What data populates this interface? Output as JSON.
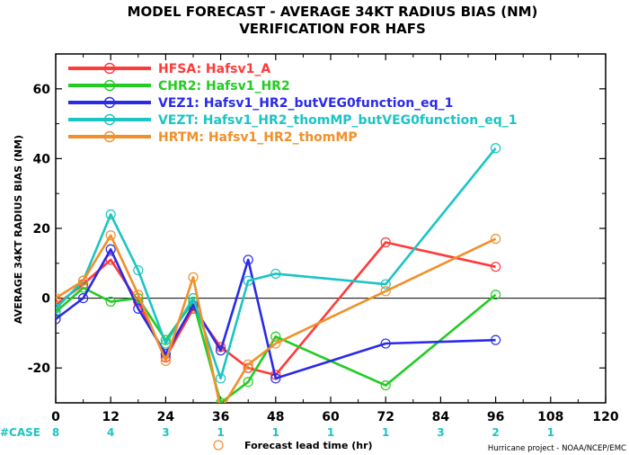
{
  "chart_data": {
    "type": "line",
    "title": "MODEL FORECAST - AVERAGE 34KT RADIUS BIAS (NM)",
    "subtitle": "VERIFICATION FOR HAFS",
    "ylabel": "AVERAGE 34KT RADIUS BIAS (NM)",
    "xlabel": "Forecast lead time (hr)",
    "credit": "Hurricane project - NOAA/NCEP/EMC",
    "case_label": "#CASE",
    "xlim": [
      0,
      120
    ],
    "ylim": [
      -30,
      70
    ],
    "xticks": [
      0,
      12,
      24,
      36,
      48,
      60,
      72,
      84,
      96,
      108,
      120
    ],
    "yticks": [
      -20,
      0,
      20,
      40,
      60
    ],
    "zero_line": true,
    "grid": false,
    "legend_position": "top-left inside",
    "cases": [
      {
        "x": 0,
        "n": "8"
      },
      {
        "x": 12,
        "n": "4"
      },
      {
        "x": 24,
        "n": "3"
      },
      {
        "x": 36,
        "n": "1"
      },
      {
        "x": 48,
        "n": "1"
      },
      {
        "x": 60,
        "n": "1"
      },
      {
        "x": 72,
        "n": "1"
      },
      {
        "x": 84,
        "n": "3"
      },
      {
        "x": 96,
        "n": "2"
      },
      {
        "x": 108,
        "n": "1"
      }
    ],
    "series": [
      {
        "name": "HFSA:  Hafsv1_A",
        "color": "#ff3a3a",
        "x": [
          0,
          6,
          12,
          18,
          24,
          30,
          36,
          42,
          48,
          72,
          96
        ],
        "y": [
          -2,
          4,
          11,
          -1,
          -17,
          -3,
          -14,
          -20,
          -22,
          16,
          9
        ]
      },
      {
        "name": "CHR2:  Hafsv1_HR2",
        "color": "#22cc22",
        "x": [
          0,
          6,
          12,
          18,
          24,
          30,
          36,
          42,
          48,
          72,
          96
        ],
        "y": [
          -4,
          3,
          -1,
          0,
          -12,
          -1,
          -30,
          -24,
          -11,
          -25,
          1
        ]
      },
      {
        "name": "VEZ1:  Hafsv1_HR2_butVEG0function_eq_1",
        "color": "#2a2ae8",
        "x": [
          0,
          6,
          12,
          18,
          24,
          30,
          36,
          42,
          48,
          72,
          96
        ],
        "y": [
          -6,
          0,
          14,
          -3,
          -16,
          -2,
          -15,
          11,
          -23,
          -13,
          -12
        ]
      },
      {
        "name": "VEZT:  Hafsv1_HR2_thomMP_butVEG0function_eq_1",
        "color": "#1cc4c4",
        "x": [
          0,
          6,
          12,
          18,
          24,
          30,
          36,
          42,
          48,
          72,
          96
        ],
        "y": [
          -3,
          5,
          24,
          8,
          -13,
          0,
          -23,
          5,
          7,
          4,
          43
        ]
      },
      {
        "name": "HRTM:  Hafsv1_HR2_thomMP",
        "color": "#f0902a",
        "x": [
          0,
          6,
          12,
          18,
          24,
          30,
          36,
          42,
          48,
          72,
          96
        ],
        "y": [
          0,
          5,
          18,
          1,
          -18,
          6,
          -32,
          -19,
          -13,
          2,
          17
        ]
      }
    ]
  }
}
